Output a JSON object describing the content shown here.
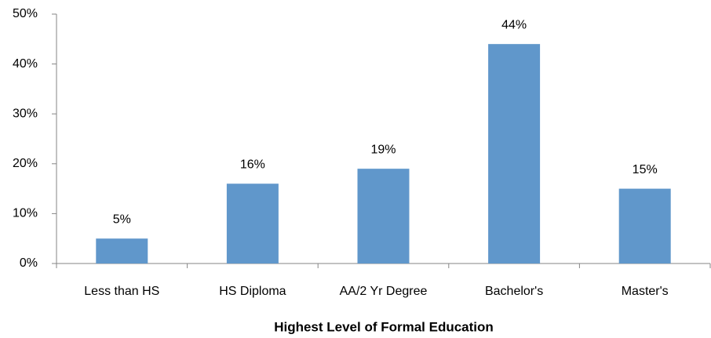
{
  "chart_data": {
    "type": "bar",
    "categories": [
      "Less than HS",
      "HS Diploma",
      "AA/2 Yr Degree",
      "Bachelor's",
      "Master's"
    ],
    "values": [
      5,
      16,
      19,
      44,
      15
    ],
    "value_labels": [
      "5%",
      "16%",
      "19%",
      "44%",
      "15%"
    ],
    "color": "#6097cb",
    "ylim": [
      0,
      50
    ],
    "yticks": [
      {
        "value": 0,
        "label": "0%"
      },
      {
        "value": 10,
        "label": "10%"
      },
      {
        "value": 20,
        "label": "20%"
      },
      {
        "value": 30,
        "label": "30%"
      },
      {
        "value": 40,
        "label": "40%"
      },
      {
        "value": 50,
        "label": "50%"
      }
    ],
    "x_label": "Highest Level of Formal Education",
    "grid": false
  }
}
